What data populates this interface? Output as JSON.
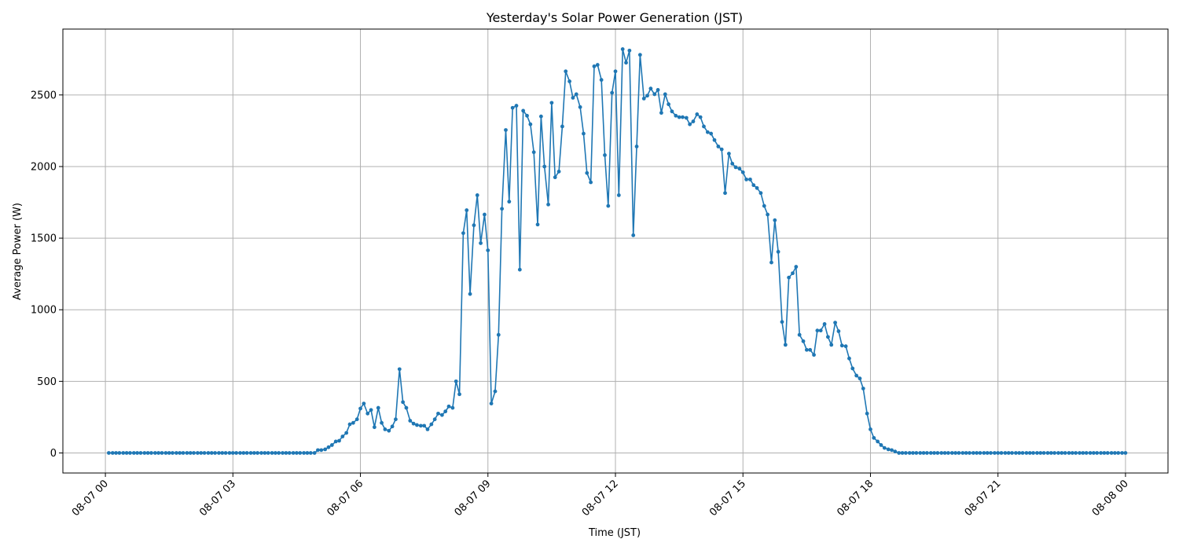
{
  "chart_data": {
    "type": "line",
    "title": "Yesterday's Solar Power Generation (JST)",
    "xlabel": "Time (JST)",
    "ylabel": "Average Power (W)",
    "x_tick_labels": [
      "08-07 00",
      "08-07 03",
      "08-07 06",
      "08-07 09",
      "08-07 12",
      "08-07 15",
      "08-07 18",
      "08-07 21",
      "08-08 00"
    ],
    "y_ticks": [
      0,
      500,
      1000,
      1500,
      2000,
      2500
    ],
    "xlim_hours": [
      -1.0,
      25.0
    ],
    "ylim": [
      -140,
      2960
    ],
    "grid": true,
    "line_color": "#1f77b4",
    "marker": "circle",
    "x_unit": "hours after 2024-08-07 00:00 JST",
    "series": [
      {
        "points": [
          [
            0.08,
            0
          ],
          [
            0.17,
            0
          ],
          [
            0.25,
            0
          ],
          [
            0.33,
            0
          ],
          [
            0.42,
            0
          ],
          [
            0.5,
            0
          ],
          [
            0.58,
            0
          ],
          [
            0.67,
            0
          ],
          [
            0.75,
            0
          ],
          [
            0.83,
            0
          ],
          [
            0.92,
            0
          ],
          [
            1.0,
            0
          ],
          [
            1.08,
            0
          ],
          [
            1.17,
            0
          ],
          [
            1.25,
            0
          ],
          [
            1.33,
            0
          ],
          [
            1.42,
            0
          ],
          [
            1.5,
            0
          ],
          [
            1.58,
            0
          ],
          [
            1.67,
            0
          ],
          [
            1.75,
            0
          ],
          [
            1.83,
            0
          ],
          [
            1.92,
            0
          ],
          [
            2.0,
            0
          ],
          [
            2.08,
            0
          ],
          [
            2.17,
            0
          ],
          [
            2.25,
            0
          ],
          [
            2.33,
            0
          ],
          [
            2.42,
            0
          ],
          [
            2.5,
            0
          ],
          [
            2.58,
            0
          ],
          [
            2.67,
            0
          ],
          [
            2.75,
            0
          ],
          [
            2.83,
            0
          ],
          [
            2.92,
            0
          ],
          [
            3.0,
            0
          ],
          [
            3.08,
            0
          ],
          [
            3.17,
            0
          ],
          [
            3.25,
            0
          ],
          [
            3.33,
            0
          ],
          [
            3.42,
            0
          ],
          [
            3.5,
            0
          ],
          [
            3.58,
            0
          ],
          [
            3.67,
            0
          ],
          [
            3.75,
            0
          ],
          [
            3.83,
            0
          ],
          [
            3.92,
            0
          ],
          [
            4.0,
            0
          ],
          [
            4.08,
            0
          ],
          [
            4.17,
            0
          ],
          [
            4.25,
            0
          ],
          [
            4.33,
            0
          ],
          [
            4.42,
            0
          ],
          [
            4.5,
            0
          ],
          [
            4.58,
            0
          ],
          [
            4.67,
            0
          ],
          [
            4.75,
            0
          ],
          [
            4.83,
            0
          ],
          [
            4.92,
            0
          ],
          [
            5.0,
            20
          ],
          [
            5.08,
            20
          ],
          [
            5.17,
            25
          ],
          [
            5.25,
            40
          ],
          [
            5.33,
            55
          ],
          [
            5.42,
            80
          ],
          [
            5.5,
            85
          ],
          [
            5.58,
            115
          ],
          [
            5.67,
            140
          ],
          [
            5.75,
            200
          ],
          [
            5.83,
            210
          ],
          [
            5.92,
            235
          ],
          [
            6.0,
            310
          ],
          [
            6.08,
            345
          ],
          [
            6.17,
            275
          ],
          [
            6.25,
            300
          ],
          [
            6.33,
            180
          ],
          [
            6.42,
            315
          ],
          [
            6.5,
            210
          ],
          [
            6.58,
            165
          ],
          [
            6.67,
            155
          ],
          [
            6.75,
            185
          ],
          [
            6.83,
            235
          ],
          [
            6.92,
            585
          ],
          [
            7.0,
            355
          ],
          [
            7.08,
            315
          ],
          [
            7.17,
            225
          ],
          [
            7.25,
            205
          ],
          [
            7.33,
            195
          ],
          [
            7.42,
            190
          ],
          [
            7.5,
            190
          ],
          [
            7.58,
            165
          ],
          [
            7.67,
            200
          ],
          [
            7.75,
            235
          ],
          [
            7.83,
            275
          ],
          [
            7.92,
            265
          ],
          [
            8.0,
            290
          ],
          [
            8.08,
            325
          ],
          [
            8.17,
            315
          ],
          [
            8.25,
            500
          ],
          [
            8.33,
            410
          ],
          [
            8.42,
            1535
          ],
          [
            8.5,
            1695
          ],
          [
            8.58,
            1110
          ],
          [
            8.67,
            1590
          ],
          [
            8.75,
            1800
          ],
          [
            8.83,
            1465
          ],
          [
            8.92,
            1665
          ],
          [
            9.0,
            1415
          ],
          [
            9.08,
            345
          ],
          [
            9.17,
            430
          ],
          [
            9.25,
            825
          ],
          [
            9.33,
            1705
          ],
          [
            9.42,
            2255
          ],
          [
            9.5,
            1755
          ],
          [
            9.58,
            2410
          ],
          [
            9.67,
            2425
          ],
          [
            9.75,
            1280
          ],
          [
            9.83,
            2390
          ],
          [
            9.92,
            2355
          ],
          [
            10.0,
            2295
          ],
          [
            10.08,
            2100
          ],
          [
            10.17,
            1595
          ],
          [
            10.25,
            2350
          ],
          [
            10.33,
            2000
          ],
          [
            10.42,
            1735
          ],
          [
            10.5,
            2445
          ],
          [
            10.58,
            1925
          ],
          [
            10.67,
            1965
          ],
          [
            10.75,
            2280
          ],
          [
            10.83,
            2665
          ],
          [
            10.92,
            2595
          ],
          [
            11.0,
            2480
          ],
          [
            11.08,
            2505
          ],
          [
            11.17,
            2415
          ],
          [
            11.25,
            2230
          ],
          [
            11.33,
            1955
          ],
          [
            11.42,
            1890
          ],
          [
            11.5,
            2700
          ],
          [
            11.58,
            2710
          ],
          [
            11.67,
            2605
          ],
          [
            11.75,
            2080
          ],
          [
            11.83,
            1725
          ],
          [
            11.92,
            2515
          ],
          [
            12.0,
            2665
          ],
          [
            12.08,
            1800
          ],
          [
            12.17,
            2820
          ],
          [
            12.25,
            2725
          ],
          [
            12.33,
            2810
          ],
          [
            12.42,
            1520
          ],
          [
            12.5,
            2140
          ],
          [
            12.58,
            2780
          ],
          [
            12.67,
            2475
          ],
          [
            12.75,
            2495
          ],
          [
            12.83,
            2545
          ],
          [
            12.92,
            2505
          ],
          [
            13.0,
            2535
          ],
          [
            13.08,
            2375
          ],
          [
            13.17,
            2505
          ],
          [
            13.25,
            2435
          ],
          [
            13.33,
            2385
          ],
          [
            13.42,
            2355
          ],
          [
            13.5,
            2345
          ],
          [
            13.58,
            2345
          ],
          [
            13.67,
            2340
          ],
          [
            13.75,
            2295
          ],
          [
            13.83,
            2315
          ],
          [
            13.92,
            2365
          ],
          [
            14.0,
            2345
          ],
          [
            14.08,
            2280
          ],
          [
            14.17,
            2240
          ],
          [
            14.25,
            2230
          ],
          [
            14.33,
            2185
          ],
          [
            14.42,
            2140
          ],
          [
            14.5,
            2120
          ],
          [
            14.58,
            1815
          ],
          [
            14.67,
            2090
          ],
          [
            14.75,
            2020
          ],
          [
            14.83,
            1995
          ],
          [
            14.92,
            1985
          ],
          [
            15.0,
            1960
          ],
          [
            15.08,
            1910
          ],
          [
            15.17,
            1910
          ],
          [
            15.25,
            1870
          ],
          [
            15.33,
            1850
          ],
          [
            15.42,
            1815
          ],
          [
            15.5,
            1725
          ],
          [
            15.58,
            1665
          ],
          [
            15.67,
            1330
          ],
          [
            15.75,
            1625
          ],
          [
            15.83,
            1405
          ],
          [
            15.92,
            915
          ],
          [
            16.0,
            755
          ],
          [
            16.08,
            1225
          ],
          [
            16.17,
            1255
          ],
          [
            16.25,
            1300
          ],
          [
            16.33,
            825
          ],
          [
            16.42,
            780
          ],
          [
            16.5,
            720
          ],
          [
            16.58,
            720
          ],
          [
            16.67,
            685
          ],
          [
            16.75,
            855
          ],
          [
            16.83,
            855
          ],
          [
            16.92,
            900
          ],
          [
            17.0,
            810
          ],
          [
            17.08,
            755
          ],
          [
            17.17,
            910
          ],
          [
            17.25,
            850
          ],
          [
            17.33,
            750
          ],
          [
            17.42,
            745
          ],
          [
            17.5,
            660
          ],
          [
            17.58,
            590
          ],
          [
            17.67,
            540
          ],
          [
            17.75,
            520
          ],
          [
            17.83,
            450
          ],
          [
            17.92,
            275
          ],
          [
            18.0,
            165
          ],
          [
            18.08,
            105
          ],
          [
            18.17,
            80
          ],
          [
            18.25,
            55
          ],
          [
            18.33,
            35
          ],
          [
            18.42,
            25
          ],
          [
            18.5,
            20
          ],
          [
            18.58,
            10
          ],
          [
            18.67,
            0
          ],
          [
            18.75,
            0
          ],
          [
            18.83,
            0
          ],
          [
            18.92,
            0
          ],
          [
            19.0,
            0
          ],
          [
            19.08,
            0
          ],
          [
            19.17,
            0
          ],
          [
            19.25,
            0
          ],
          [
            19.33,
            0
          ],
          [
            19.42,
            0
          ],
          [
            19.5,
            0
          ],
          [
            19.58,
            0
          ],
          [
            19.67,
            0
          ],
          [
            19.75,
            0
          ],
          [
            19.83,
            0
          ],
          [
            19.92,
            0
          ],
          [
            20.0,
            0
          ],
          [
            20.08,
            0
          ],
          [
            20.17,
            0
          ],
          [
            20.25,
            0
          ],
          [
            20.33,
            0
          ],
          [
            20.42,
            0
          ],
          [
            20.5,
            0
          ],
          [
            20.58,
            0
          ],
          [
            20.67,
            0
          ],
          [
            20.75,
            0
          ],
          [
            20.83,
            0
          ],
          [
            20.92,
            0
          ],
          [
            21.0,
            0
          ],
          [
            21.08,
            0
          ],
          [
            21.17,
            0
          ],
          [
            21.25,
            0
          ],
          [
            21.33,
            0
          ],
          [
            21.42,
            0
          ],
          [
            21.5,
            0
          ],
          [
            21.58,
            0
          ],
          [
            21.67,
            0
          ],
          [
            21.75,
            0
          ],
          [
            21.83,
            0
          ],
          [
            21.92,
            0
          ],
          [
            22.0,
            0
          ],
          [
            22.08,
            0
          ],
          [
            22.17,
            0
          ],
          [
            22.25,
            0
          ],
          [
            22.33,
            0
          ],
          [
            22.42,
            0
          ],
          [
            22.5,
            0
          ],
          [
            22.58,
            0
          ],
          [
            22.67,
            0
          ],
          [
            22.75,
            0
          ],
          [
            22.83,
            0
          ],
          [
            22.92,
            0
          ],
          [
            23.0,
            0
          ],
          [
            23.08,
            0
          ],
          [
            23.17,
            0
          ],
          [
            23.25,
            0
          ],
          [
            23.33,
            0
          ],
          [
            23.42,
            0
          ],
          [
            23.5,
            0
          ],
          [
            23.58,
            0
          ],
          [
            23.67,
            0
          ],
          [
            23.75,
            0
          ],
          [
            23.83,
            0
          ],
          [
            23.92,
            0
          ],
          [
            24.0,
            0
          ]
        ]
      }
    ]
  }
}
